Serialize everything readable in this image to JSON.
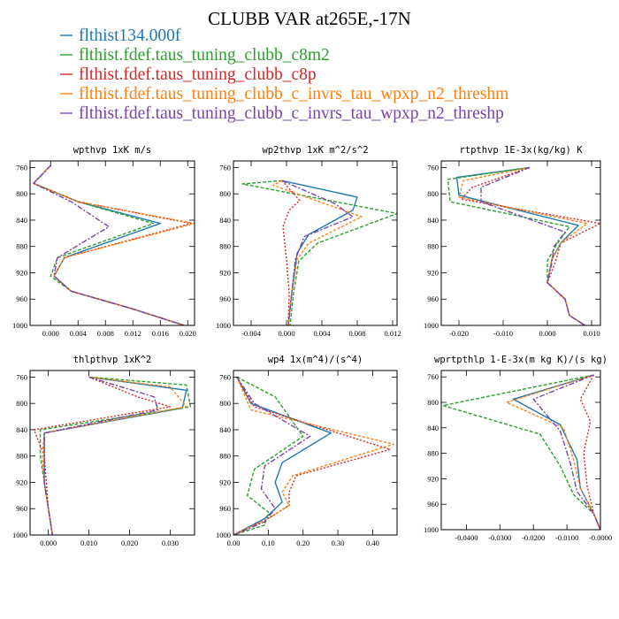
{
  "page_title": "CLUBB VAR at265E,-17N",
  "legend": [
    {
      "label": "flthist134.000f",
      "color": "#1f77b4",
      "dash": ""
    },
    {
      "label": "flthist.fdef.taus_tuning_clubb_c8m2",
      "color": "#2ca02c",
      "dash": "4,2"
    },
    {
      "label": "flthist.fdef.taus_tuning_clubb_c8p",
      "color": "#d62728",
      "dash": "2,2"
    },
    {
      "label": "flthist.fdef.taus_tuning_clubb_c_invrs_tau_wpxp_n2_threshm",
      "color": "#ff7f0e",
      "dash": "3,2"
    },
    {
      "label": "flthist.fdef.taus_tuning_clubb_c_invrs_tau_wpxp_n2_threshp",
      "color": "#7744aa",
      "dash": "6,2,2,2"
    }
  ],
  "chart_data": [
    {
      "type": "line",
      "title": "wpthvp  1xK m/s",
      "xlim": [
        -0.003,
        0.021
      ],
      "xticks": [
        0.0,
        0.004,
        0.008,
        0.012,
        0.016,
        0.02
      ],
      "xticklabels": [
        "0.000",
        "0.004",
        "0.008",
        "0.012",
        "0.016",
        "0.020"
      ],
      "ylim": [
        750,
        1000
      ],
      "yticks": [
        760,
        800,
        840,
        880,
        920,
        960,
        1000
      ],
      "yticklabels": [
        "760",
        "800",
        "840",
        "880",
        "920",
        "960",
        "1000"
      ],
      "series": [
        {
          "x": [
            0.0,
            -0.0025,
            0.004,
            0.016,
            0.002,
            0.0005,
            0.003,
            0.012,
            0.0195
          ],
          "y": [
            757,
            784,
            812,
            845,
            897,
            925,
            948,
            975,
            1000
          ]
        },
        {
          "x": [
            0.0,
            -0.0025,
            0.004,
            0.015,
            0.001,
            0.0,
            0.003,
            0.012,
            0.0195
          ],
          "y": [
            757,
            784,
            812,
            845,
            897,
            925,
            948,
            975,
            1000
          ]
        },
        {
          "x": [
            0.0,
            -0.0025,
            0.004,
            0.0205,
            0.002,
            0.0005,
            0.003,
            0.012,
            0.0195
          ],
          "y": [
            757,
            784,
            812,
            845,
            897,
            925,
            948,
            975,
            1000
          ]
        },
        {
          "x": [
            0.0,
            -0.0025,
            0.004,
            0.021,
            0.002,
            0.0005,
            0.003,
            0.012,
            0.0195
          ],
          "y": [
            757,
            784,
            812,
            845,
            897,
            925,
            948,
            975,
            1000
          ]
        },
        {
          "x": [
            0.0,
            -0.0025,
            0.003,
            0.0085,
            0.001,
            0.0005,
            0.003,
            0.012,
            0.0195
          ],
          "y": [
            757,
            784,
            812,
            850,
            897,
            925,
            948,
            975,
            1000
          ]
        }
      ]
    },
    {
      "type": "line",
      "title": "wp2thvp  1xK m^2/s^2",
      "xlim": [
        -0.006,
        0.0125
      ],
      "xticks": [
        -0.004,
        0.0,
        0.004,
        0.008,
        0.012
      ],
      "xticklabels": [
        "-0.004",
        "0.000",
        "0.004",
        "0.008",
        "0.012"
      ],
      "ylim": [
        750,
        1000
      ],
      "yticks": [
        760,
        800,
        840,
        880,
        920,
        960,
        1000
      ],
      "yticklabels": [
        "760",
        "800",
        "840",
        "880",
        "920",
        "960",
        "1000"
      ],
      "series": [
        {
          "x": [
            -0.0005,
            0.008,
            0.0075,
            0.0025,
            0.0012,
            0.0006,
            0.0002
          ],
          "y": [
            780,
            805,
            825,
            862,
            890,
            950,
            1000
          ]
        },
        {
          "x": [
            -0.0005,
            -0.005,
            0.0125,
            0.0035,
            0.0014,
            0.0008,
            0.0004
          ],
          "y": [
            780,
            785,
            830,
            875,
            902,
            950,
            1000
          ]
        },
        {
          "x": [
            -0.0005,
            0.0015,
            0.0003,
            -0.0004,
            0.0,
            0.0003,
            0.0002
          ],
          "y": [
            780,
            810,
            825,
            850,
            900,
            950,
            1000
          ]
        },
        {
          "x": [
            -0.0005,
            -0.0015,
            0.0085,
            0.0025,
            0.0012,
            0.0006,
            0.0002
          ],
          "y": [
            780,
            787,
            835,
            875,
            900,
            950,
            1000
          ]
        },
        {
          "x": [
            -0.0005,
            0.0055,
            0.0075,
            0.002,
            0.001,
            0.0006,
            0.0002
          ],
          "y": [
            780,
            815,
            835,
            865,
            900,
            950,
            1000
          ]
        }
      ]
    },
    {
      "type": "line",
      "title": "rtpthvp  1E-3x(kg/kg) K",
      "xlim": [
        -0.024,
        0.012
      ],
      "xticks": [
        -0.02,
        -0.01,
        0.0,
        0.01
      ],
      "xticklabels": [
        "-0.020",
        "-0.010",
        "0.000",
        "0.010"
      ],
      "ylim": [
        750,
        1000
      ],
      "yticks": [
        760,
        800,
        840,
        880,
        920,
        960,
        1000
      ],
      "yticklabels": [
        "760",
        "800",
        "840",
        "880",
        "920",
        "960",
        "1000"
      ],
      "series": [
        {
          "x": [
            -0.004,
            -0.0205,
            -0.02,
            0.007,
            0.003,
            0.001,
            0.0,
            0.004,
            0.005,
            0.0085
          ],
          "y": [
            760,
            775,
            802,
            848,
            875,
            900,
            935,
            960,
            985,
            1000
          ]
        },
        {
          "x": [
            -0.004,
            -0.0225,
            -0.022,
            0.005,
            0.002,
            0.0,
            0.0,
            0.004,
            0.005,
            0.0085
          ],
          "y": [
            760,
            778,
            812,
            850,
            878,
            902,
            935,
            960,
            985,
            1000
          ]
        },
        {
          "x": [
            -0.004,
            -0.017,
            -0.0195,
            0.012,
            0.003,
            0.002,
            0.0,
            0.004,
            0.005,
            0.0085
          ],
          "y": [
            760,
            790,
            808,
            845,
            875,
            900,
            935,
            960,
            985,
            1000
          ]
        },
        {
          "x": [
            -0.004,
            -0.019,
            -0.02,
            0.009,
            0.003,
            0.001,
            0.0,
            0.004,
            0.005,
            0.0085
          ],
          "y": [
            760,
            780,
            805,
            845,
            875,
            900,
            935,
            960,
            985,
            1000
          ]
        },
        {
          "x": [
            -0.004,
            -0.015,
            -0.015,
            0.004,
            0.0015,
            0.001,
            0.0,
            0.004,
            0.005,
            0.0085
          ],
          "y": [
            760,
            790,
            812,
            858,
            880,
            905,
            935,
            960,
            985,
            1000
          ]
        }
      ]
    },
    {
      "type": "line",
      "title": "thlpthvp  1xK^2",
      "xlim": [
        -0.0045,
        0.036
      ],
      "xticks": [
        0.0,
        0.01,
        0.02,
        0.03
      ],
      "xticklabels": [
        "0.000",
        "0.010",
        "0.020",
        "0.030"
      ],
      "ylim": [
        750,
        1000
      ],
      "yticks": [
        760,
        800,
        840,
        880,
        920,
        960,
        1000
      ],
      "yticklabels": [
        "760",
        "800",
        "840",
        "880",
        "920",
        "960",
        "1000"
      ],
      "series": [
        {
          "x": [
            0.01,
            0.034,
            0.033,
            -0.001,
            -0.001,
            -0.001,
            0.0,
            0.001
          ],
          "y": [
            760,
            780,
            807,
            845,
            880,
            920,
            960,
            1000
          ]
        },
        {
          "x": [
            0.01,
            0.034,
            0.035,
            -0.002,
            -0.002,
            -0.001,
            0.0,
            0.001
          ],
          "y": [
            760,
            772,
            805,
            840,
            880,
            920,
            960,
            1000
          ]
        },
        {
          "x": [
            0.01,
            0.022,
            0.03,
            -0.0035,
            -0.001,
            -0.0005,
            0.0,
            0.001
          ],
          "y": [
            760,
            790,
            805,
            840,
            880,
            920,
            960,
            1000
          ]
        },
        {
          "x": [
            0.01,
            0.03,
            0.034,
            -0.001,
            -0.0015,
            -0.001,
            0.0,
            0.001
          ],
          "y": [
            760,
            775,
            805,
            845,
            880,
            920,
            960,
            1000
          ]
        },
        {
          "x": [
            0.01,
            0.026,
            0.027,
            -0.001,
            -0.001,
            -0.001,
            0.0,
            0.001
          ],
          "y": [
            760,
            790,
            810,
            845,
            880,
            920,
            960,
            1000
          ]
        }
      ]
    },
    {
      "type": "line",
      "title": "wp4  1x(m^4)/(s^4)",
      "xlim": [
        0.0,
        0.47
      ],
      "xticks": [
        0.0,
        0.1,
        0.2,
        0.3,
        0.4
      ],
      "xticklabels": [
        "0.00",
        "0.10",
        "0.20",
        "0.30",
        "0.40"
      ],
      "ylim": [
        750,
        1000
      ],
      "yticks": [
        760,
        800,
        840,
        880,
        920,
        960,
        1000
      ],
      "yticklabels": [
        "760",
        "800",
        "840",
        "880",
        "920",
        "960",
        "1000"
      ],
      "series": [
        {
          "x": [
            0.01,
            0.05,
            0.28,
            0.14,
            0.12,
            0.14,
            0.09,
            0.0
          ],
          "y": [
            760,
            800,
            845,
            890,
            920,
            950,
            975,
            1000
          ]
        },
        {
          "x": [
            0.01,
            0.12,
            0.2,
            0.06,
            0.04,
            0.1,
            0.09,
            0.0
          ],
          "y": [
            760,
            790,
            850,
            900,
            940,
            965,
            985,
            1000
          ]
        },
        {
          "x": [
            0.01,
            0.06,
            0.45,
            0.18,
            0.16,
            0.16,
            0.1,
            0.0
          ],
          "y": [
            760,
            805,
            870,
            910,
            935,
            955,
            975,
            1000
          ]
        },
        {
          "x": [
            0.01,
            0.05,
            0.46,
            0.17,
            0.14,
            0.16,
            0.1,
            0.0
          ],
          "y": [
            760,
            810,
            862,
            910,
            935,
            955,
            975,
            1000
          ]
        },
        {
          "x": [
            0.01,
            0.06,
            0.22,
            0.09,
            0.08,
            0.12,
            0.09,
            0.0
          ],
          "y": [
            760,
            800,
            850,
            895,
            930,
            960,
            980,
            1000
          ]
        }
      ]
    },
    {
      "type": "line",
      "title": "wprtpthlp  1-E-3x(m kg K)/(s kg)",
      "xlim": [
        -0.0475,
        0.0
      ],
      "xticks": [
        -0.04,
        -0.03,
        -0.02,
        -0.01,
        0.0
      ],
      "xticklabels": [
        "-0.0400",
        "-0.0300",
        "-0.0200",
        "-0.0100",
        "-0.0000"
      ],
      "ylim": [
        750,
        1000
      ],
      "yticks": [
        760,
        800,
        840,
        880,
        920,
        960,
        1000
      ],
      "yticklabels": [
        "760",
        "800",
        "840",
        "880",
        "920",
        "960",
        "1000"
      ],
      "series": [
        {
          "x": [
            -0.002,
            -0.026,
            -0.012,
            -0.007,
            -0.006,
            -0.002,
            0.0
          ],
          "y": [
            757,
            795,
            835,
            890,
            935,
            975,
            1000
          ]
        },
        {
          "x": [
            -0.002,
            -0.047,
            -0.018,
            -0.012,
            -0.008,
            -0.002,
            0.0
          ],
          "y": [
            757,
            805,
            850,
            900,
            945,
            975,
            1000
          ]
        },
        {
          "x": [
            -0.002,
            -0.006,
            -0.003,
            -0.005,
            -0.004,
            -0.002,
            0.0
          ],
          "y": [
            757,
            795,
            830,
            880,
            930,
            975,
            1000
          ]
        },
        {
          "x": [
            -0.002,
            -0.028,
            -0.011,
            -0.008,
            -0.006,
            -0.002,
            0.0
          ],
          "y": [
            757,
            800,
            840,
            890,
            935,
            975,
            1000
          ]
        },
        {
          "x": [
            -0.002,
            -0.02,
            -0.012,
            -0.009,
            -0.007,
            -0.002,
            0.0
          ],
          "y": [
            757,
            795,
            845,
            895,
            940,
            975,
            1000
          ]
        }
      ]
    }
  ]
}
